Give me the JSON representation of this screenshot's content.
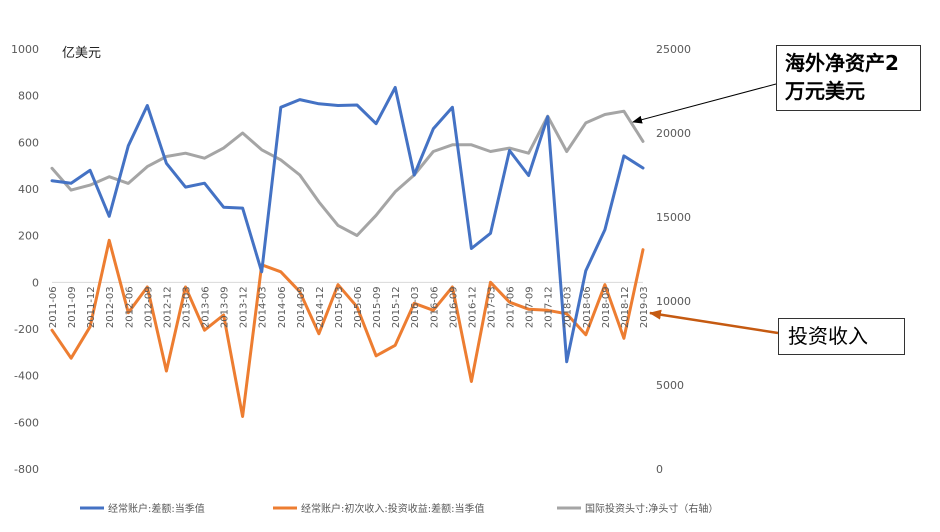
{
  "chart_data": {
    "type": "line",
    "unit_label": "亿美元",
    "x": [
      "2011-06",
      "2011-09",
      "2011-12",
      "2012-03",
      "2012-06",
      "2012-09",
      "2012-12",
      "2013-03",
      "2013-06",
      "2013-09",
      "2013-12",
      "2014-03",
      "2014-06",
      "2014-09",
      "2014-12",
      "2015-03",
      "2015-06",
      "2015-09",
      "2015-12",
      "2016-03",
      "2016-06",
      "2016-09",
      "2016-12",
      "2017-03",
      "2017-06",
      "2017-09",
      "2017-12",
      "2018-03",
      "2018-06",
      "2018-09",
      "2018-12",
      "2019-03"
    ],
    "left_axis": {
      "ylim": [
        -800,
        1000
      ],
      "ticks": [
        "1000",
        "800",
        "600",
        "400",
        "200",
        "0",
        "-200",
        "-400",
        "-600",
        "-800"
      ]
    },
    "right_axis": {
      "ylim": [
        0,
        25000
      ],
      "ticks": [
        "25000",
        "20000",
        "15000",
        "10000",
        "5000",
        "0"
      ]
    },
    "series": [
      {
        "name": "经常账户:差额:当季值",
        "axis": "left",
        "color": "#4472C4",
        "values": [
          435,
          425,
          480,
          283,
          585,
          758,
          510,
          408,
          425,
          322,
          318,
          45,
          750,
          783,
          765,
          758,
          760,
          680,
          835,
          460,
          658,
          750,
          145,
          210,
          565,
          458,
          710,
          -340,
          50,
          225,
          542,
          490
        ]
      },
      {
        "name": "经常账户:初次收入:投资收益:差额:当季值",
        "axis": "left",
        "color": "#ED7D31",
        "values": [
          -205,
          -325,
          -190,
          180,
          -130,
          -20,
          -380,
          -20,
          -205,
          -140,
          -575,
          75,
          45,
          -40,
          -220,
          -10,
          -105,
          -315,
          -270,
          -90,
          -120,
          -20,
          -425,
          0,
          -85,
          -115,
          -120,
          -135,
          -225,
          -10,
          -240,
          140
        ]
      },
      {
        "name": "国际投资头寸:净头寸（右轴）",
        "axis": "right",
        "color": "#A5A5A5",
        "values": [
          17900,
          16600,
          16900,
          17400,
          17000,
          18000,
          18600,
          18800,
          18500,
          19100,
          20000,
          19000,
          18400,
          17500,
          15900,
          14500,
          13900,
          15100,
          16500,
          17500,
          18900,
          19300,
          19300,
          18900,
          19100,
          18800,
          21000,
          18900,
          20600,
          21100,
          21300,
          19500
        ]
      }
    ],
    "annotations": [
      {
        "text": "海外净资产2万元美元",
        "series": "国际投资头寸:净头寸（右轴）",
        "arrow_color": "#000000"
      },
      {
        "text": "投资收入",
        "series": "经常账户:初次收入:投资收益:差额:当季值",
        "arrow_color": "#C55A11"
      }
    ],
    "legend_placement": "bottom",
    "grid": false
  }
}
